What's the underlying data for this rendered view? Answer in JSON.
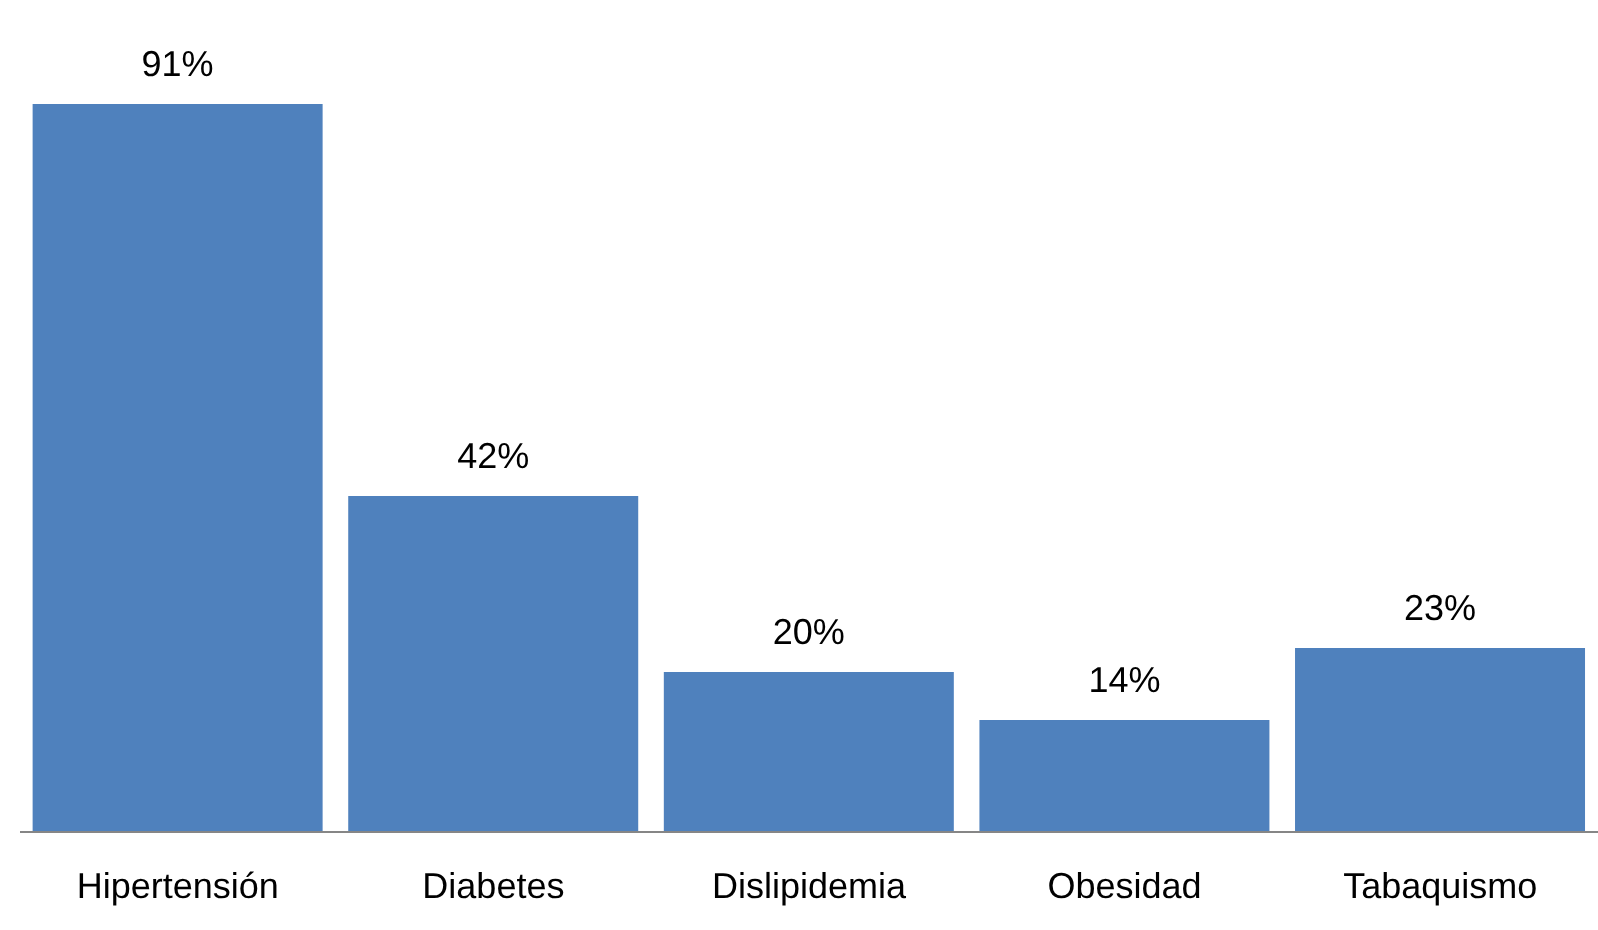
{
  "chart_data": {
    "type": "bar",
    "categories": [
      "Hipertensión",
      "Diabetes",
      "Dislipidemia",
      "Obesidad",
      "Tabaquismo"
    ],
    "values": [
      91,
      42,
      20,
      14,
      23
    ],
    "value_labels": [
      "91%",
      "42%",
      "20%",
      "14%",
      "23%"
    ],
    "color": "#4f81bd",
    "grid": false,
    "legend": false
  }
}
